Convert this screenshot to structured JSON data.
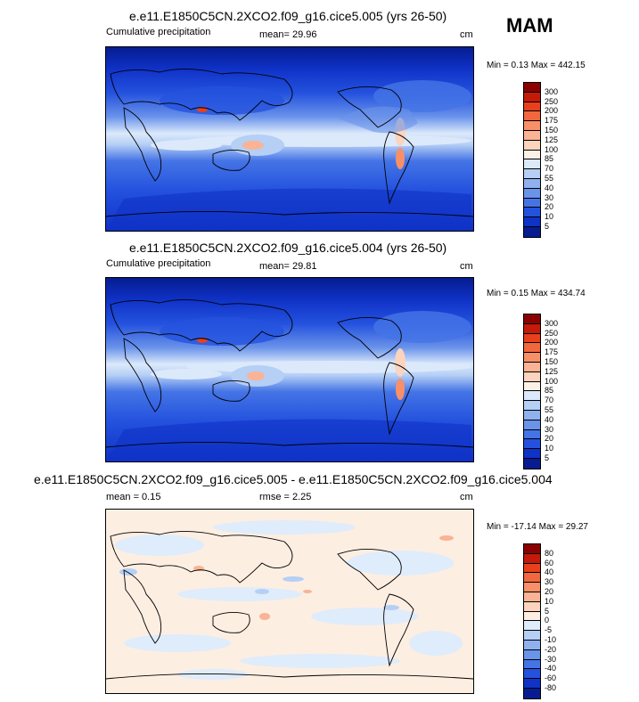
{
  "season": "MAM",
  "panels": [
    {
      "title": "e.e11.E1850C5CN.2XCO2.f09_g16.cice5.005 (yrs 26-50)",
      "left_label": "Cumulative precipitation",
      "center_label": "mean=  29.96",
      "units": "cm",
      "minmax": "Min =   0.13 Max = 442.15"
    },
    {
      "title": "e.e11.E1850C5CN.2XCO2.f09_g16.cice5.004 (yrs 26-50)",
      "left_label": "Cumulative precipitation",
      "center_label": "mean=  29.81",
      "units": "cm",
      "minmax": "Min =   0.15 Max = 434.74"
    },
    {
      "title": "e.e11.E1850C5CN.2XCO2.f09_g16.cice5.005 - e.e11.E1850C5CN.2XCO2.f09_g16.cice5.004",
      "left_label": "mean =   0.15",
      "center_label": "rmse =   2.25",
      "units": "cm",
      "minmax": "Min = -17.14 Max = 29.27"
    }
  ],
  "colorbars": {
    "precip": {
      "labels": [
        "300",
        "250",
        "200",
        "175",
        "150",
        "125",
        "100",
        "85",
        "70",
        "55",
        "40",
        "30",
        "20",
        "10",
        "5"
      ],
      "colors": [
        "#8b0000",
        "#c41a0a",
        "#e8401c",
        "#f2683e",
        "#f79068",
        "#fab394",
        "#fcd3bc",
        "#fdf0e6",
        "#dbe9fb",
        "#b5cff5",
        "#8fb1ef",
        "#6a93ea",
        "#4574e6",
        "#2452de",
        "#0f32c7",
        "#061c90"
      ]
    },
    "diff": {
      "labels": [
        "80",
        "60",
        "40",
        "30",
        "20",
        "10",
        "5",
        "0",
        "-5",
        "-10",
        "-20",
        "-30",
        "-40",
        "-60",
        "-80"
      ],
      "colors": [
        "#8b0000",
        "#c41a0a",
        "#e8401c",
        "#f2683e",
        "#f79068",
        "#fab394",
        "#fcd3bc",
        "#fdeee2",
        "#dfecfb",
        "#b5cff5",
        "#8fb1ef",
        "#6a93ea",
        "#4574e6",
        "#2452de",
        "#0f32c7",
        "#061c90"
      ]
    }
  }
}
